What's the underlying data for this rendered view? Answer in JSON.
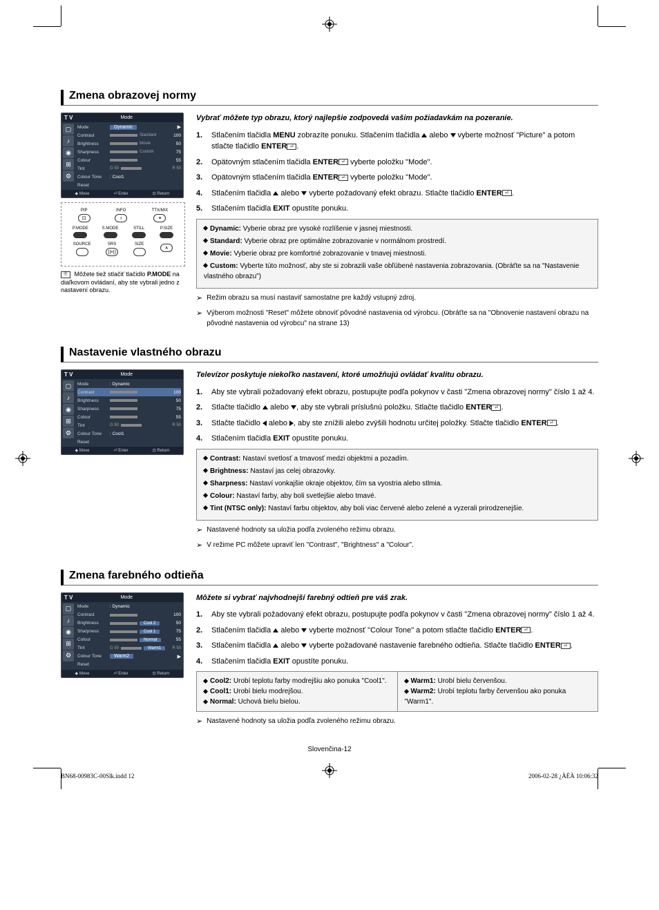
{
  "cropMarks": {
    "color": "#000000"
  },
  "section1": {
    "title": "Zmena obrazovej normy",
    "tvMenu": {
      "tvLabel": "T V",
      "modeTitle": "Mode",
      "rows": [
        {
          "label": "Mode",
          "value": "Dynamic",
          "highlight": true,
          "type": "select"
        },
        {
          "label": "Contrast",
          "secondary": "Standard",
          "num": "100",
          "type": "bar"
        },
        {
          "label": "Brightness",
          "secondary": "Movie",
          "num": "50",
          "type": "bar"
        },
        {
          "label": "Sharpness",
          "secondary": "Custom",
          "num": "75",
          "type": "bar"
        },
        {
          "label": "Colour",
          "num": "55",
          "type": "bar"
        },
        {
          "label": "Tint",
          "left": "G 50",
          "right": "R 50",
          "type": "tint"
        },
        {
          "label": "Colour Tone",
          "value": ": Cool1",
          "type": "text"
        },
        {
          "label": "Reset",
          "type": "text"
        }
      ],
      "footer": {
        "move": "Move",
        "enter": "Enter",
        "return": "Return"
      }
    },
    "remote": {
      "row1": [
        {
          "label": "PIP",
          "icon": "⊡"
        },
        {
          "label": "INFO",
          "icon": "i"
        },
        {
          "label": "TTX/MIX",
          "icon": "≡"
        }
      ],
      "row2": [
        {
          "label": "P.MODE",
          "type": "pill"
        },
        {
          "label": "S.MODE",
          "type": "pill"
        },
        {
          "label": "STILL",
          "type": "pill"
        },
        {
          "label": "P.SIZE",
          "type": "pill"
        }
      ],
      "row3": [
        {
          "label": "SOURCE",
          "icon": ""
        },
        {
          "label": "SRS",
          "icon": "((•))"
        },
        {
          "label": "SIZE",
          "icon": ""
        },
        {
          "label": "",
          "icon": "∧"
        }
      ]
    },
    "caption": "Môžete tiež stlačiť tlačidlo P.MODE na diaľkovom ovládaní, aby ste vybrali jedno z nastavení obrazu.",
    "captionBold": "P.MODE",
    "intro": "Vybrať môžete typ obrazu, ktorý najlepšie zodpovedá vašim požiadavkám na pozeranie.",
    "steps": [
      "Stlačením tlačidla MENU zobrazíte ponuku. Stlačením tlačidla ▲ alebo ▼ vyberte možnosť \"Picture\" a potom stlačte tlačidlo ENTER.",
      "Opätovným stlačením tlačidla ENTER vyberte položku \"Mode\".",
      "Opätovným stlačením tlačidla ENTER vyberte položku \"Mode\".",
      "Stlačením tlačidla ▲ alebo ▼ vyberte požadovaný efekt obrazu. Stlačte tlačidlo ENTER.",
      "Stlačením tlačidla EXIT opustíte ponuku."
    ],
    "grayBox": [
      {
        "term": "Dynamic:",
        "desc": "Vyberie obraz pre vysoké rozlíšenie v jasnej miestnosti."
      },
      {
        "term": "Standard:",
        "desc": "Vyberie obraz pre optimálne zobrazovanie v normálnom prostredí."
      },
      {
        "term": "Movie:",
        "desc": "Vyberie obraz pre komfortné zobrazovanie v tmavej miestnosti."
      },
      {
        "term": "Custom:",
        "desc": "Vyberte túto možnosť, aby ste si zobrazili vaše obľúbené nastavenia zobrazovania. (Obráťte sa na \"Nastavenie vlastného obrazu\")"
      }
    ],
    "notes": [
      "Režim obrazu sa musí nastaviť samostatne pre každý vstupný zdroj.",
      "Výberom možnosti \"Reset\" môžete obnoviť pôvodné nastavenia od výrobcu. (Obráťte sa na \"Obnovenie nastavení obrazu na pôvodné nastavenia od výrobcu\" na strane 13)"
    ]
  },
  "section2": {
    "title": "Nastavenie vlastného obrazu",
    "tvMenu": {
      "tvLabel": "T V",
      "modeTitle": "Mode",
      "rows": [
        {
          "label": "Mode",
          "value": ": Dynamic",
          "type": "text"
        },
        {
          "label": "Contrast",
          "highlight": true,
          "num": "100",
          "type": "bar"
        },
        {
          "label": "Brightness",
          "num": "50",
          "type": "bar"
        },
        {
          "label": "Sharpness",
          "num": "75",
          "type": "bar"
        },
        {
          "label": "Colour",
          "num": "55",
          "type": "bar"
        },
        {
          "label": "Tint",
          "left": "G 50",
          "right": "R 50",
          "type": "tint"
        },
        {
          "label": "Colour Tone",
          "value": ": Cool1",
          "type": "text"
        },
        {
          "label": "Reset",
          "type": "text"
        }
      ],
      "footer": {
        "move": "Move",
        "enter": "Enter",
        "return": "Return"
      }
    },
    "intro": "Televízor poskytuje niekoľko nastavení, ktoré umožňujú ovládať kvalitu obrazu.",
    "steps": [
      "Aby ste vybrali požadovaný efekt obrazu, postupujte podľa pokynov v časti \"Zmena obrazovej normy\" číslo 1 až 4.",
      "Stlačte tlačidlo ▲ alebo ▼, aby ste vybrali príslušnú položku. Stlačte tlačidlo ENTER.",
      "Stlačte tlačidlo ◀ alebo ▶, aby ste znížili alebo zvýšili hodnotu určitej položky. Stlačte tlačidlo ENTER.",
      "Stlačením tlačidla EXIT opustíte ponuku."
    ],
    "grayBox": [
      {
        "term": "Contrast:",
        "desc": "Nastaví svetlosť a tmavosť medzi objektmi a pozadím."
      },
      {
        "term": "Brightness:",
        "desc": "Nastaví jas celej obrazovky."
      },
      {
        "term": "Sharpness:",
        "desc": "Nastaví vonkajšie okraje objektov, čím sa vyostria alebo stlmia."
      },
      {
        "term": "Colour:",
        "desc": "Nastaví farby, aby boli svetlejšie alebo tmavé."
      },
      {
        "term": "Tint (NTSC only):",
        "desc": "Nastaví farbu objektov, aby boli viac červené alebo zelené a vyzerali prirodzenejšie."
      }
    ],
    "notes": [
      "Nastavené hodnoty sa uložia podľa zvoleného režimu obrazu.",
      "V režime PC môžete upraviť len \"Contrast\", \"Brightness\" a \"Colour\"."
    ]
  },
  "section3": {
    "title": "Zmena farebného odtieňa",
    "tvMenu": {
      "tvLabel": "T V",
      "modeTitle": "Mode",
      "rows": [
        {
          "label": "Mode",
          "value": ": Dynamic",
          "type": "text"
        },
        {
          "label": "Contrast",
          "num": "100",
          "type": "bar"
        },
        {
          "label": "Brightness",
          "value": "Cool 2",
          "num": "50",
          "type": "bar-hl"
        },
        {
          "label": "Sharpness",
          "value": "Cool 1",
          "num": "75",
          "type": "bar-hl"
        },
        {
          "label": "Colour",
          "value": "Normal",
          "num": "55",
          "type": "bar-hl"
        },
        {
          "label": "Tint",
          "left": "G 50",
          "value": "Warm1",
          "right": "R 50",
          "type": "tint-hl"
        },
        {
          "label": "Colour Tone",
          "value": "Warm2",
          "highlight": true,
          "type": "select"
        },
        {
          "label": "Reset",
          "type": "text"
        }
      ],
      "footer": {
        "move": "Move",
        "enter": "Enter",
        "return": "Return"
      }
    },
    "intro": "Môžete si vybrať najvhodnejší farebný odtieň pre váš zrak.",
    "steps": [
      "Aby ste vybrali požadovaný efekt obrazu, postupujte podľa pokynov v časti \"Zmena obrazovej normy\" číslo 1 až 4.",
      "Stlačením tlačidla ▲ alebo ▼ vyberte možnosť \"Colour Tone\" a potom stlačte tlačidlo ENTER.",
      "Stlačením tlačidla ▲ alebo ▼ vyberte požadované nastavenie farebného odtieňa. Stlačte tlačidlo ENTER.",
      "Stlačením tlačidla EXIT opustíte ponuku."
    ],
    "twoColBox": {
      "left": [
        {
          "term": "Cool2:",
          "desc": "Urobí teplotu farby modrejšiu ako ponuka \"Cool1\"."
        },
        {
          "term": "Cool1:",
          "desc": "Urobí bielu modrejšou."
        },
        {
          "term": "Normal:",
          "desc": "Uchová bielu bielou."
        }
      ],
      "right": [
        {
          "term": "Warm1:",
          "desc": "Urobí bielu červenšou."
        },
        {
          "term": "Warm2:",
          "desc": "Urobí teplotu farby červenšou ako ponuka \"Warm1\"."
        }
      ]
    },
    "notes": [
      "Nastavené hodnoty sa uložia podľa zvoleného režimu obrazu."
    ]
  },
  "pageFooter": "Slovenčina-12",
  "printFooter": {
    "file": "BN68-00983C-00Slk.indd   12",
    "date": "2006-02-28   ¿ÀÈÀ 10:06:32"
  }
}
